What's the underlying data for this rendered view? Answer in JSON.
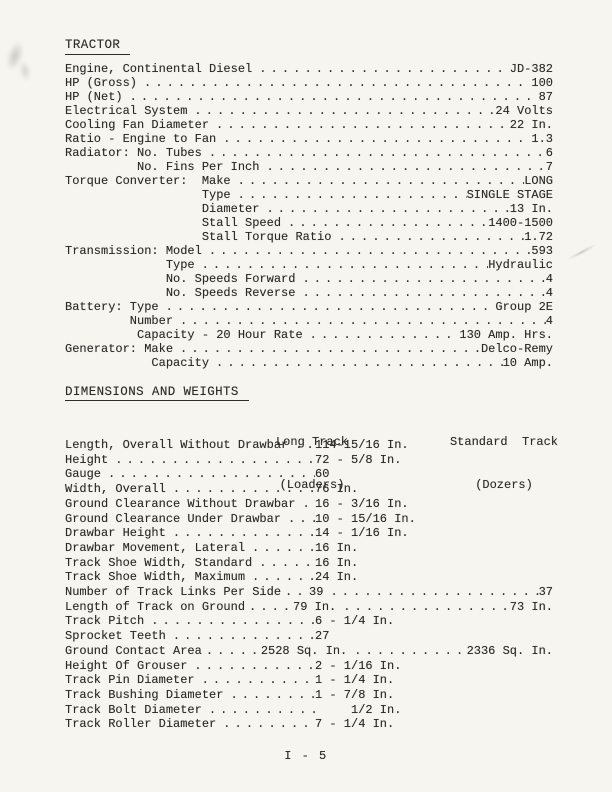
{
  "page": {
    "footer": "I - 5"
  },
  "colors": {
    "paper": "#f7f5f0",
    "ink": "#2b2a27"
  },
  "tractor": {
    "heading": "TRACTOR",
    "rows": [
      {
        "label": "Engine, Continental Diesel",
        "value": "JD-382"
      },
      {
        "label": "HP (Gross)",
        "value": "100"
      },
      {
        "label": "HP (Net)",
        "value": "87"
      },
      {
        "label": "Electrical System",
        "value": "24 Volts"
      },
      {
        "label": "Cooling Fan Diameter",
        "value": "22 In."
      },
      {
        "label": "Ratio - Engine to Fan",
        "value": "1.3"
      },
      {
        "label": "Radiator: No. Tubes",
        "value": "6"
      },
      {
        "label": "          No. Fins Per Inch",
        "value": "7"
      },
      {
        "label": "Torque Converter:  Make",
        "value": "LONG"
      },
      {
        "label": "                   Type",
        "value": "SINGLE STAGE"
      },
      {
        "label": "                   Diameter",
        "value": "13 In."
      },
      {
        "label": "                   Stall Speed",
        "value": "1400-1500"
      },
      {
        "label": "                   Stall Torque Ratio",
        "value": "1.72"
      },
      {
        "label": "Transmission: Model",
        "value": "593"
      },
      {
        "label": "              Type",
        "value": "Hydraulic"
      },
      {
        "label": "              No. Speeds Forward",
        "value": "4"
      },
      {
        "label": "              No. Speeds Reverse",
        "value": "4"
      },
      {
        "label": "Battery: Type",
        "value": "Group 2E"
      },
      {
        "label": "         Number",
        "value": "4"
      },
      {
        "label": "          Capacity - 20 Hour Rate",
        "value": "130 Amp. Hrs."
      },
      {
        "label": "Generator: Make",
        "value": "Delco-Remy"
      },
      {
        "label": "            Capacity",
        "value": "10 Amp."
      }
    ]
  },
  "dimensions": {
    "heading": "DIMENSIONS AND WEIGHTS",
    "columns": [
      {
        "line1": "Long Track",
        "line2": "(Loaders)"
      },
      {
        "line1": "Standard  Track",
        "line2": "(Dozers)"
      }
    ],
    "rows": [
      {
        "label": "Length, Overall Without Drawbar",
        "value": "114-15/16 In."
      },
      {
        "label": "Height",
        "value": "72 - 5/8 In."
      },
      {
        "label": "Gauge",
        "value": "60"
      },
      {
        "label": "Width, Overall",
        "value": "76 In."
      },
      {
        "label": "Ground Clearance Without Drawbar",
        "value": "16 - 3/16 In."
      },
      {
        "label": "Ground Clearance Under Drawbar",
        "value": "10 - 15/16 In."
      },
      {
        "label": "Drawbar Height",
        "value": "14 - 1/16 In."
      },
      {
        "label": "Drawbar Movement, Lateral",
        "value": "16 In."
      },
      {
        "label": "Track Shoe Width, Standard",
        "value": "16 In."
      },
      {
        "label": "Track Shoe Width, Maximum",
        "value": "24 In."
      },
      {
        "label": "Number of Track Links Per Side",
        "value": "39",
        "value2": "37"
      },
      {
        "label": "Length of Track on Ground",
        "value": "79 In.",
        "value2": "73 In."
      },
      {
        "label": "Track Pitch",
        "value": "6 - 1/4 In."
      },
      {
        "label": "Sprocket Teeth",
        "value": "27"
      },
      {
        "label": "Ground Contact Area",
        "value": "2528 Sq. In.",
        "value2": "2336 Sq. In."
      },
      {
        "label": "Height Of Grouser",
        "value": "2 - 1/16 In."
      },
      {
        "label": "Track Pin Diameter",
        "value": "1 - 1/4 In."
      },
      {
        "label": "Track Bushing Diameter",
        "value": "1 - 7/8 In."
      },
      {
        "label": "Track Bolt Diameter",
        "value": "     1/2 In."
      },
      {
        "label": "Track Roller Diameter",
        "value": "7 - 1/4 In."
      }
    ]
  }
}
